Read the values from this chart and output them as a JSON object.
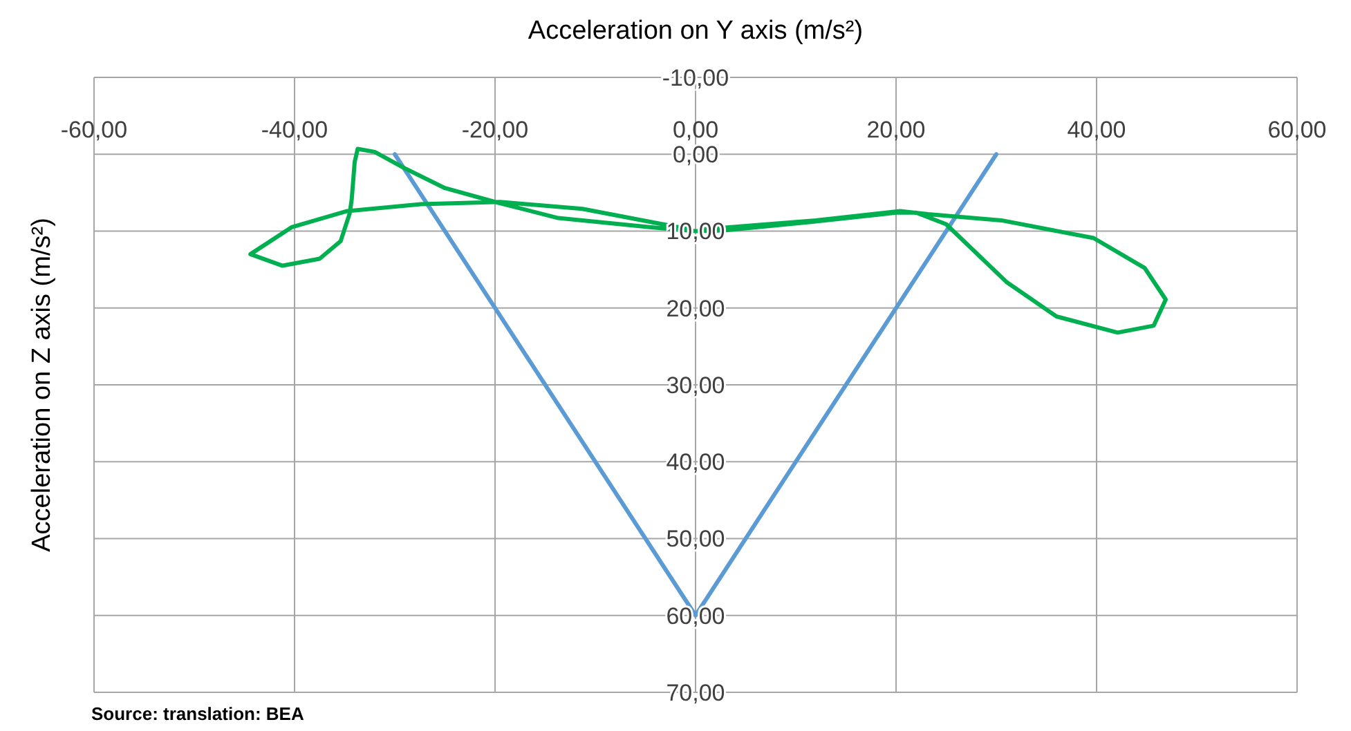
{
  "chart_data": {
    "type": "line",
    "xlabel": "Acceleration on Y axis (m/s²)",
    "ylabel": "Acceleration on Z axis (m/s²)",
    "xlim": [
      -60,
      60
    ],
    "xticks": [
      {
        "value": -60,
        "label": "-60,00"
      },
      {
        "value": -40,
        "label": "-40,00"
      },
      {
        "value": -20,
        "label": "-20,00"
      },
      {
        "value": 0,
        "label": "0,00"
      },
      {
        "value": 20,
        "label": "20,00"
      },
      {
        "value": 40,
        "label": "40,00"
      },
      {
        "value": 60,
        "label": "60,00"
      }
    ],
    "ylim": [
      70,
      -10
    ],
    "yticks": [
      {
        "value": -10,
        "label": "-10,00"
      },
      {
        "value": 0,
        "label": "0,00"
      },
      {
        "value": 10,
        "label": "10,00"
      },
      {
        "value": 20,
        "label": "20,00"
      },
      {
        "value": 30,
        "label": "30,00"
      },
      {
        "value": 40,
        "label": "40,00"
      },
      {
        "value": 50,
        "label": "50,00"
      },
      {
        "value": 60,
        "label": "60,00"
      },
      {
        "value": 70,
        "label": "70,00"
      }
    ],
    "grid": true,
    "marker": "none",
    "line_style": "solid",
    "series": [
      {
        "color": "#5b9bd5",
        "x": [
          -30,
          0,
          30
        ],
        "values": [
          0,
          60,
          0
        ]
      },
      {
        "color": "#00b050",
        "x": [
          0.5,
          12,
          20.4,
          23.2,
          30.5,
          39.7,
          44.8,
          46.9,
          45.7,
          42.1,
          36,
          31,
          25,
          22,
          20,
          11.5,
          3,
          0,
          -4.4,
          -13.7,
          -20,
          -25,
          -29.2,
          -32,
          -33.7,
          -34,
          -34.3,
          -34.5,
          -35.4,
          -37.5,
          -41.2,
          -44.4,
          -40.3,
          -34.8,
          -27.4,
          -19.5,
          -11.3,
          -0.5
        ],
        "values": [
          9.8,
          8.6,
          7.4,
          7.8,
          8.6,
          10.9,
          14.8,
          18.9,
          22.3,
          23.2,
          21.1,
          16.6,
          9.1,
          7.6,
          7.6,
          8.8,
          9.9,
          10,
          9.5,
          8.3,
          6.2,
          4.4,
          1.7,
          -0.3,
          -0.7,
          1,
          5.9,
          7.7,
          11.3,
          13.6,
          14.5,
          13,
          9.5,
          7.4,
          6.5,
          6.2,
          7.1,
          9.8
        ]
      }
    ],
    "annotations": [
      "Source: translation: BEA"
    ]
  }
}
